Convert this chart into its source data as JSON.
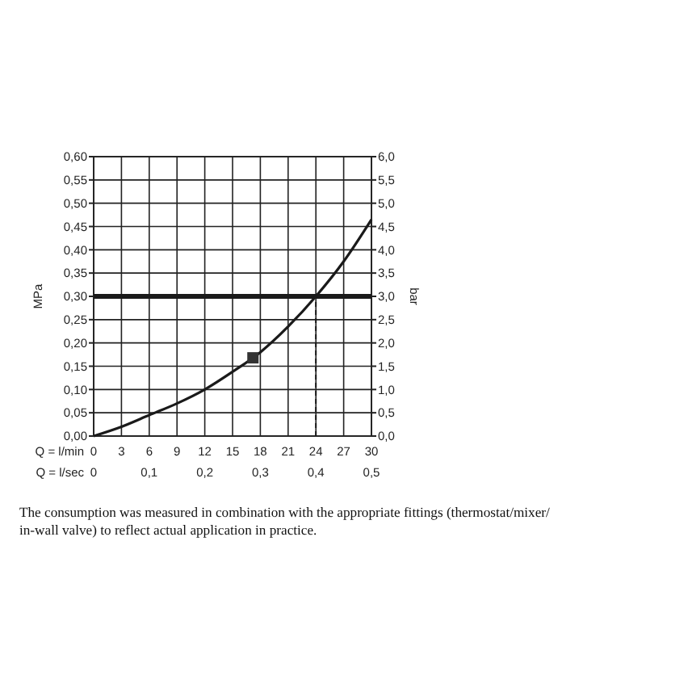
{
  "chart_data": {
    "type": "line",
    "xlabel": "Q = l/min",
    "x2label": "Q = l/sec",
    "ylabel": "MPa",
    "y2label": "bar",
    "xlim": [
      0,
      30
    ],
    "xticks": [
      0,
      3,
      6,
      9,
      12,
      15,
      18,
      21,
      24,
      27,
      30
    ],
    "x2lim": [
      0,
      0.5
    ],
    "x2ticks": [
      0,
      {
        "value": 0.1,
        "label": "0,1"
      },
      {
        "value": 0.2,
        "label": "0,2"
      },
      {
        "value": 0.3,
        "label": "0,3"
      },
      {
        "value": 0.4,
        "label": "0,4"
      },
      {
        "value": 0.5,
        "label": "0,5"
      }
    ],
    "ylim": [
      0,
      0.6
    ],
    "yticks": [
      {
        "value": 0,
        "label": "0,00"
      },
      {
        "value": 0.05,
        "label": "0,05"
      },
      {
        "value": 0.1,
        "label": "0,10"
      },
      {
        "value": 0.15,
        "label": "0,15"
      },
      {
        "value": 0.2,
        "label": "0,20"
      },
      {
        "value": 0.25,
        "label": "0,25"
      },
      {
        "value": 0.3,
        "label": "0,30"
      },
      {
        "value": 0.35,
        "label": "0,35"
      },
      {
        "value": 0.4,
        "label": "0,40"
      },
      {
        "value": 0.45,
        "label": "0,45"
      },
      {
        "value": 0.5,
        "label": "0,50"
      },
      {
        "value": 0.55,
        "label": "0,55"
      },
      {
        "value": 0.6,
        "label": "0,60"
      }
    ],
    "y2lim": [
      0,
      6
    ],
    "y2ticks": [
      {
        "value": 0,
        "label": "0,0"
      },
      {
        "value": 0.5,
        "label": "0,5"
      },
      {
        "value": 1,
        "label": "1,0"
      },
      {
        "value": 1.5,
        "label": "1,5"
      },
      {
        "value": 2,
        "label": "2,0"
      },
      {
        "value": 2.5,
        "label": "2,5"
      },
      {
        "value": 3,
        "label": "3,0"
      },
      {
        "value": 3.5,
        "label": "3,5"
      },
      {
        "value": 4,
        "label": "4,0"
      },
      {
        "value": 4.5,
        "label": "4,5"
      },
      {
        "value": 5,
        "label": "5,0"
      },
      {
        "value": 5.5,
        "label": "5,5"
      },
      {
        "value": 6,
        "label": "6,0"
      }
    ],
    "grid": true,
    "series": [
      {
        "color": "#1a1a1a",
        "x": [
          0,
          3,
          6,
          9,
          12,
          15,
          18,
          21,
          24,
          27,
          30
        ],
        "values": [
          0,
          0.02,
          0.045,
          0.07,
          0.1,
          0.138,
          0.18,
          0.235,
          0.3,
          0.375,
          0.465
        ]
      },
      {
        "type": "scatter",
        "color": "#333333",
        "marker": "square",
        "x": [
          17.2
        ],
        "values": [
          0.168
        ]
      }
    ],
    "ref_lines": [
      {
        "axis": "y",
        "value": 0.3,
        "color": "#1a1a1a",
        "line_style": "solid"
      },
      {
        "axis": "x",
        "value": 24,
        "color": "#1a1a1a",
        "line_style": "dashed"
      }
    ],
    "annotations": [
      "The consumption was measured in combination with the appropriate fittings (thermostat/mixer/ in-wall valve) to reflect actual application in practice."
    ]
  }
}
